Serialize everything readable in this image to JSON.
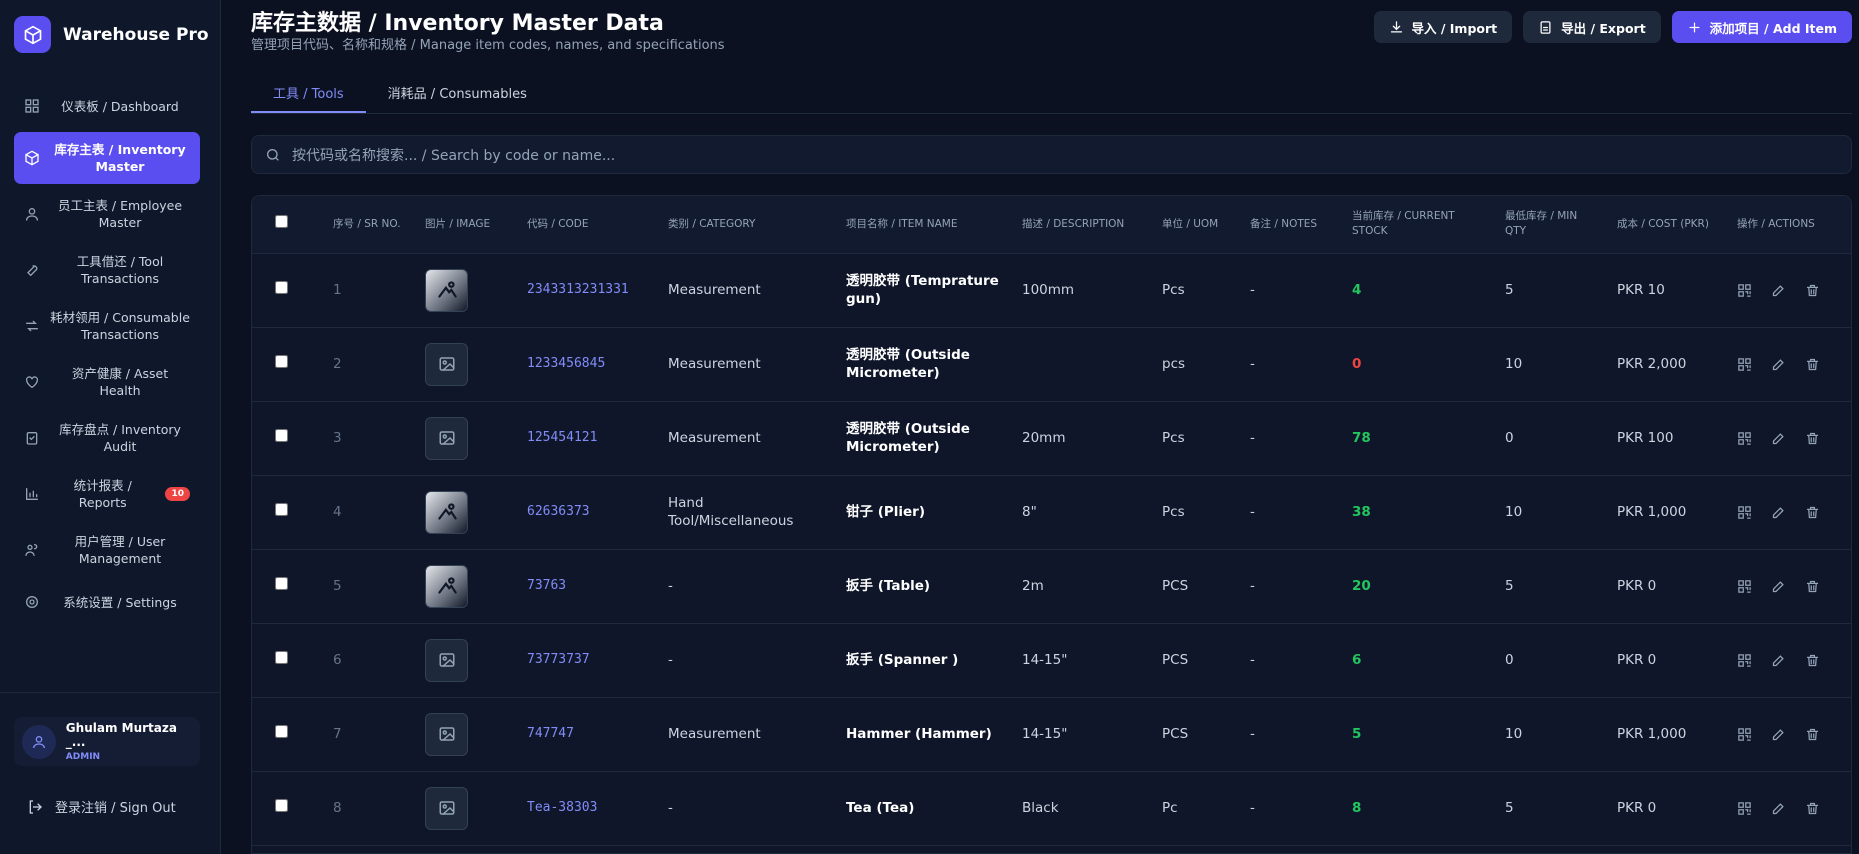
{
  "sidebar": {
    "brand": "Warehouse Pro",
    "nav": [
      {
        "label": "仪表板 / Dashboard"
      },
      {
        "label": "库存主表 / Inventory Master",
        "active": true
      },
      {
        "label": "员工主表 / Employee Master"
      },
      {
        "label": "工具借还 / Tool Transactions"
      },
      {
        "label": "耗材领用 / Consumable Transactions"
      },
      {
        "label": "资产健康 / Asset Health"
      },
      {
        "label": "库存盘点 / Inventory Audit"
      },
      {
        "label": "统计报表 / Reports",
        "badge": 10
      },
      {
        "label": "用户管理 / User Management"
      },
      {
        "label": "系统设置 / Settings"
      }
    ],
    "user": {
      "name": "Ghulam Murtaza _...",
      "role": "ADMIN"
    },
    "sign_out": "登录注销 / Sign Out"
  },
  "header": {
    "title": "库存主数据 / Inventory Master Data",
    "subtitle": "管理项目代码、名称和规格 / Manage item codes, names, and specifications",
    "buttons": [
      "导入 / Import",
      "导出 / Export",
      "添加项目 / Add Item"
    ]
  },
  "tabs": [
    {
      "label": "工具 / Tools",
      "active": true
    },
    {
      "label": "消耗品 / Consumables"
    }
  ],
  "search": {
    "placeholder": "按代码或名称搜索... / Search by code or name..."
  },
  "table": {
    "columns": [
      "序号 / SR NO.",
      "图片 / IMAGE",
      "代码 / CODE",
      "类别 / CATEGORY",
      "项目名称 / ITEM NAME",
      "描述 / DESCRIPTION",
      "单位 / UOM",
      "备注 / NOTES",
      "当前库存 / CURRENT STOCK",
      "最低库存 / MIN QTY",
      "成本 / COST (PKR)",
      "操作 / ACTIONS"
    ],
    "rows": [
      {
        "sr": 1,
        "photo": true,
        "code": "2343313231331",
        "category": "Measurement",
        "name": "透明胶带 (Temprature gun)",
        "description": "100mm",
        "uom": "Pcs",
        "notes": "-",
        "stock": 4,
        "min_qty": 5,
        "cost": "PKR 10"
      },
      {
        "sr": 2,
        "photo": false,
        "code": "1233456845",
        "category": "Measurement",
        "name": "透明胶带 (Outside Micrometer)",
        "description": null,
        "uom": "pcs",
        "notes": "-",
        "stock": 0,
        "min_qty": 10,
        "cost": "PKR 2,000"
      },
      {
        "sr": 3,
        "photo": false,
        "code": "125454121",
        "category": "Measurement",
        "name": "透明胶带 (Outside Micrometer)",
        "description": "20mm",
        "uom": "Pcs",
        "notes": "-",
        "stock": 78,
        "min_qty": 0,
        "cost": "PKR 100"
      },
      {
        "sr": 4,
        "photo": true,
        "code": "62636373",
        "category": "Hand Tool/Miscellaneous",
        "name": "钳子 (Plier)",
        "description": "8\"",
        "uom": "Pcs",
        "notes": "-",
        "stock": 38,
        "min_qty": 10,
        "cost": "PKR 1,000"
      },
      {
        "sr": 5,
        "photo": true,
        "code": "73763",
        "category": "-",
        "name": "扳手 (Table)",
        "description": "2m",
        "uom": "PCS",
        "notes": "-",
        "stock": 20,
        "min_qty": 5,
        "cost": "PKR 0"
      },
      {
        "sr": 6,
        "photo": false,
        "code": "73773737",
        "category": "-",
        "name": "扳手 (Spanner )",
        "description": "14-15\"",
        "uom": "PCS",
        "notes": "-",
        "stock": 6,
        "min_qty": 0,
        "cost": "PKR 0"
      },
      {
        "sr": 7,
        "photo": false,
        "code": "747747",
        "category": "Measurement",
        "name": "Hammer (Hammer)",
        "description": "14-15\"",
        "uom": "PCS",
        "notes": "-",
        "stock": 5,
        "min_qty": 10,
        "cost": "PKR 1,000"
      },
      {
        "sr": 8,
        "photo": false,
        "code": "Tea-38303",
        "category": "-",
        "name": "Tea (Tea)",
        "description": "Black",
        "uom": "Pc",
        "notes": "-",
        "stock": 8,
        "min_qty": 5,
        "cost": "PKR 0"
      }
    ]
  }
}
